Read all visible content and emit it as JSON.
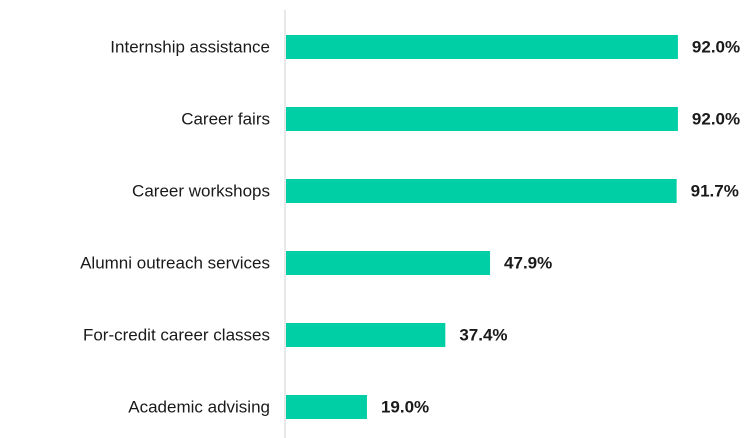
{
  "chart_data": {
    "type": "hbar",
    "categories": [
      "Internship assistance",
      "Career fairs",
      "Career workshops",
      "Alumni outreach services",
      "For-credit career classes",
      "Academic advising"
    ],
    "values": [
      92.0,
      92.0,
      91.7,
      47.9,
      37.4,
      19.0
    ],
    "value_labels": [
      "92.0%",
      "92.0%",
      "91.7%",
      "47.9%",
      "37.4%",
      "19.0%"
    ],
    "color": "#00cfa6",
    "xlim": [
      0,
      100
    ]
  }
}
